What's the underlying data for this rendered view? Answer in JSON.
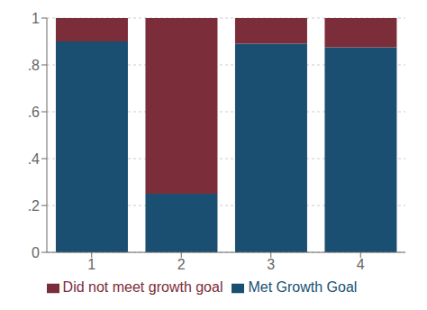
{
  "chart_data": {
    "type": "bar",
    "stacked": true,
    "categories": [
      "1",
      "2",
      "3",
      "4"
    ],
    "series": [
      {
        "name": "Met Growth Goal",
        "color": "#1B4F72",
        "values": [
          0.9,
          0.25,
          0.89,
          0.875
        ]
      },
      {
        "name": "Did not meet growth goal",
        "color": "#7B2D3A",
        "values": [
          0.1,
          0.75,
          0.11,
          0.125
        ]
      }
    ],
    "ylim": [
      0,
      1
    ],
    "yticks": [
      0,
      {
        "value": 0.2,
        "label": ".2"
      },
      {
        "value": 0.4,
        "label": ".4"
      },
      {
        "value": 0.6,
        "label": ".6"
      },
      {
        "value": 0.8,
        "label": ".8"
      },
      1
    ],
    "grid": true,
    "legend": "bottom"
  }
}
